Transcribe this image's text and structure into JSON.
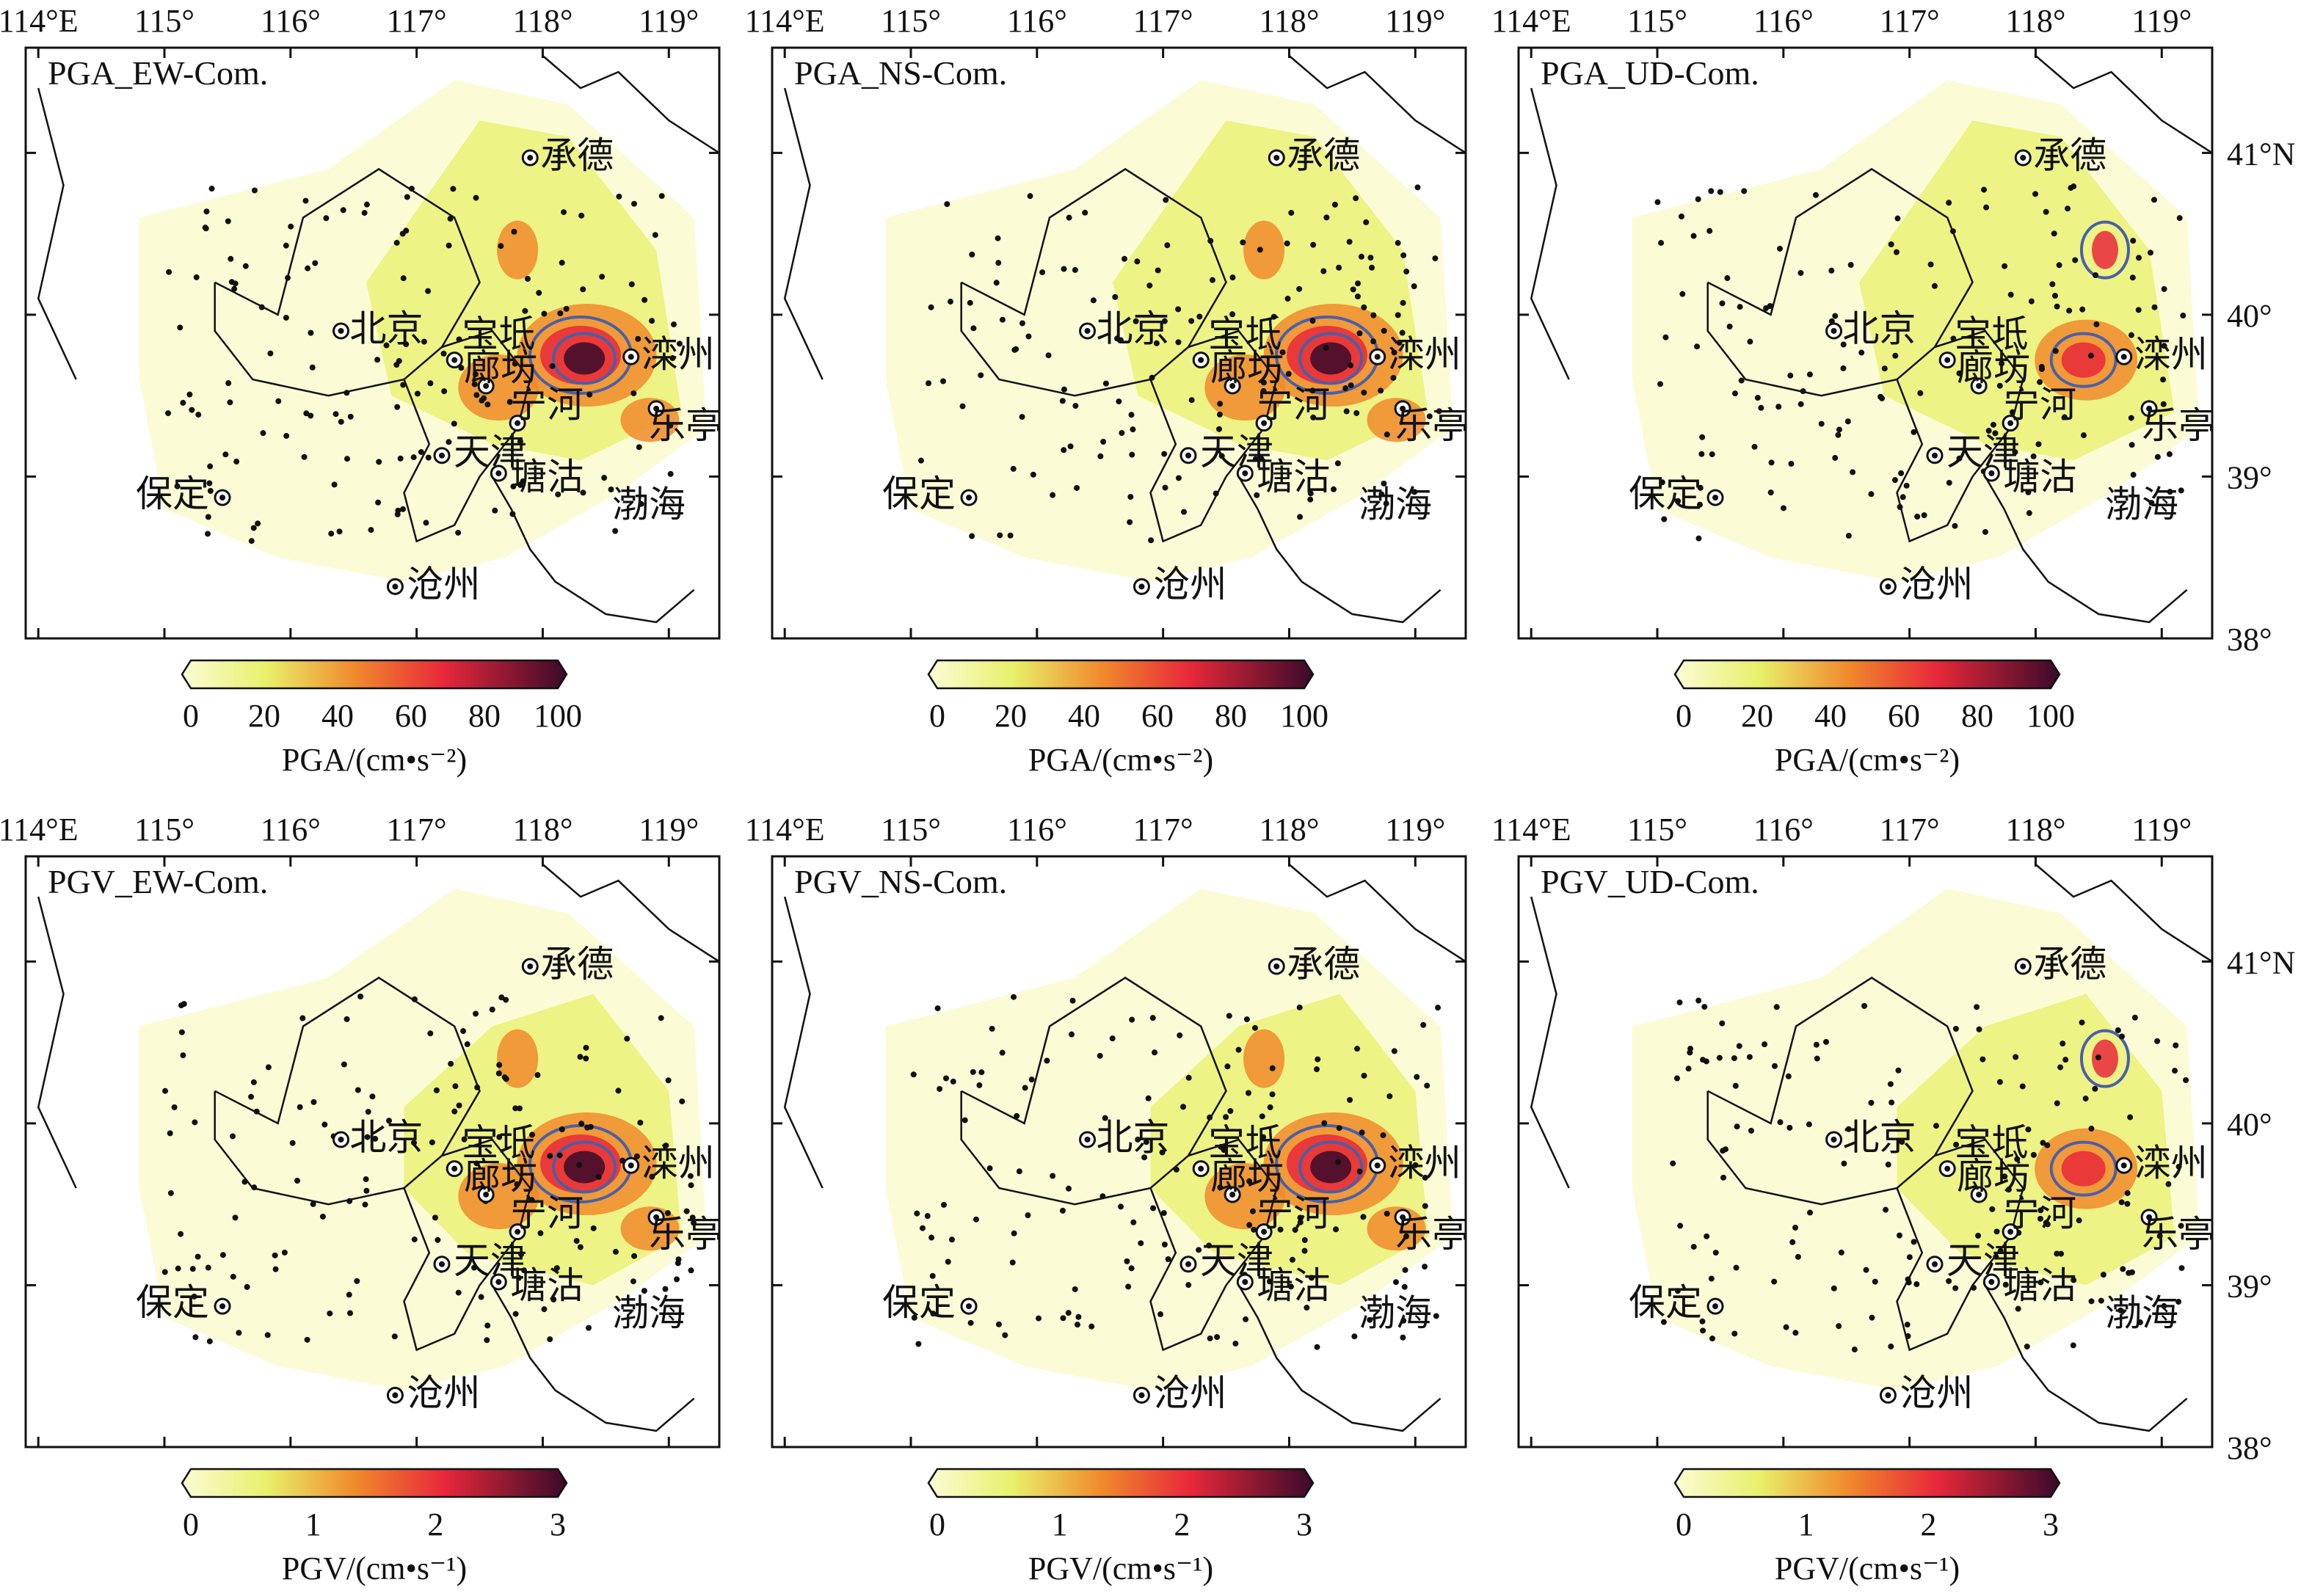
{
  "figure": {
    "lon_tick_labels": [
      "114°E",
      "115°",
      "116°",
      "117°",
      "118°",
      "119°"
    ],
    "lat_tick_labels": [
      "41°N",
      "40°",
      "39°",
      "38°"
    ],
    "colors": {
      "pale": "#fbfcd6",
      "yellow": "#e8f06a",
      "orange": "#f08a2c",
      "red": "#e8283a",
      "dark": "#3a0a2a",
      "contour": "#4a5fa8",
      "border": "#111111"
    },
    "sea_label": "渤海",
    "cities": [
      {
        "name": "承德",
        "marker": "circle-dot"
      },
      {
        "name": "北京",
        "marker": "circle-dot"
      },
      {
        "name": "宝坻",
        "marker": "circle-dot"
      },
      {
        "name": "廊坊",
        "marker": "circle-dot"
      },
      {
        "name": "宁河",
        "marker": "circle-dot"
      },
      {
        "name": "滦州",
        "marker": "circle-dot"
      },
      {
        "name": "乐亭",
        "marker": "circle-dot"
      },
      {
        "name": "天津",
        "marker": "circle-dot"
      },
      {
        "name": "塘沽",
        "marker": "circle-dot"
      },
      {
        "name": "保定",
        "marker": "circle-dot"
      },
      {
        "name": "沧州",
        "marker": "circle-dot"
      }
    ],
    "rows": [
      {
        "panels": [
          {
            "title": "PGA_EW-Com.",
            "peak": "tangshan-strong"
          },
          {
            "title": "PGA_NS-Com.",
            "peak": "tangshan-strong"
          },
          {
            "title": "PGA_UD-Com.",
            "peak": "tangshan-moderate"
          }
        ],
        "colorbar": {
          "ticks": [
            "0",
            "20",
            "40",
            "60",
            "80",
            "100"
          ],
          "range": [
            0,
            100
          ],
          "label": "PGA/(cm•s⁻²)"
        }
      },
      {
        "panels": [
          {
            "title": "PGV_EW-Com.",
            "peak": "tangshan-strong"
          },
          {
            "title": "PGV_NS-Com.",
            "peak": "tangshan-strong"
          },
          {
            "title": "PGV_UD-Com.",
            "peak": "tangshan-moderate"
          }
        ],
        "colorbar": {
          "ticks": [
            "0",
            "1",
            "2",
            "3"
          ],
          "range": [
            0,
            3
          ],
          "label": "PGV/(cm•s⁻¹)"
        }
      }
    ]
  }
}
